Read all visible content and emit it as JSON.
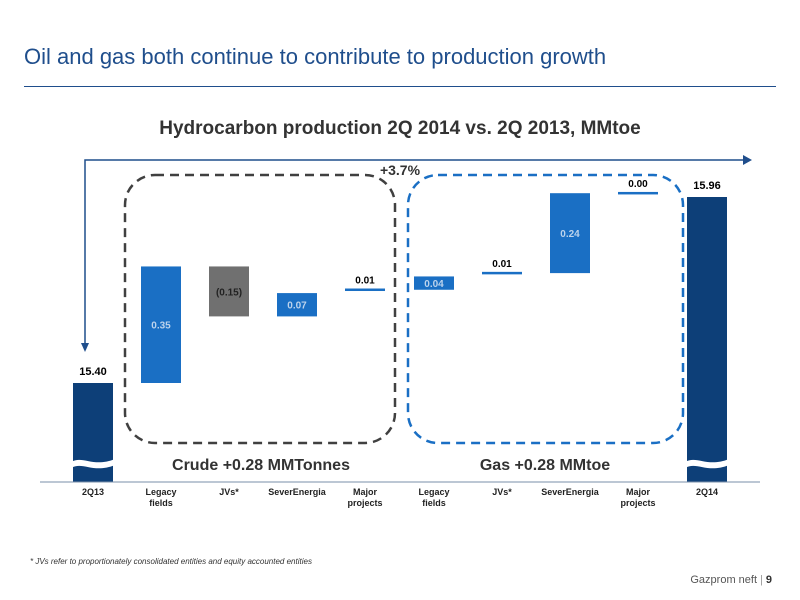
{
  "slide": {
    "title": "Oil and gas both continue to contribute to production growth",
    "footnote": "* JVs refer to proportionately consolidated entities and equity accounted entities",
    "company": "Gazprom neft",
    "page": "9"
  },
  "chart_data": {
    "type": "bar",
    "subtype": "waterfall",
    "title": "Hydrocarbon production 2Q 2014 vs. 2Q 2013, MMtoe",
    "categories": [
      "2Q13",
      "Legacy fields",
      "JVs*",
      "SeverEnergia",
      "Major projects",
      "Legacy fields",
      "JVs*",
      "SeverEnergia",
      "Major projects",
      "2Q14"
    ],
    "values": [
      15.4,
      0.35,
      -0.15,
      0.07,
      0.01,
      0.04,
      0.01,
      0.24,
      0.0,
      15.96
    ],
    "labels": [
      "15.40",
      "0.35",
      "(0.15)",
      "0.07",
      "0.01",
      "0.04",
      "0.01",
      "0.24",
      "0.00",
      "15.96"
    ],
    "kinds": [
      "total",
      "delta",
      "delta",
      "delta",
      "delta",
      "delta",
      "delta",
      "delta",
      "delta",
      "total"
    ],
    "growth_label": "+3.7%",
    "groups": [
      {
        "label": "Crude +0.28 MMTonnes",
        "from": 1,
        "to": 4
      },
      {
        "label": "Gas +0.28 MMtoe",
        "from": 5,
        "to": 8
      }
    ],
    "colors": {
      "total": "#0d3f78",
      "increase": "#1a6fc4",
      "decrease": "#707070",
      "crude_box": "#404040",
      "gas_box": "#1a6fc4",
      "arrow": "#1f4e8c",
      "label_light": "#bcd3ec",
      "label_dark": "#000000"
    }
  }
}
